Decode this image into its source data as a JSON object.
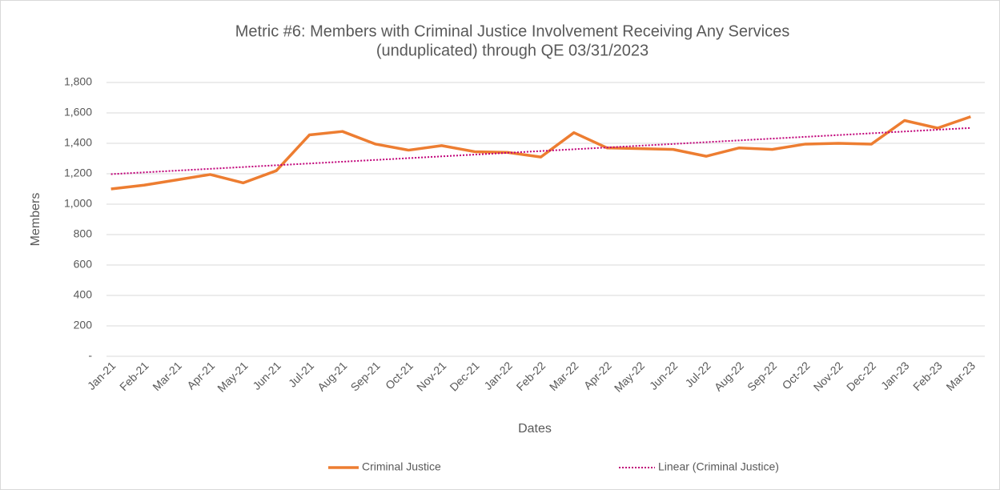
{
  "chart_data": {
    "type": "line",
    "title": [
      "Metric #6: Members with Criminal Justice Involvement Receiving Any Services",
      "(unduplicated) through QE 03/31/2023"
    ],
    "x_label": "Dates",
    "y_label": "Members",
    "categories": [
      "Jan-21",
      "Feb-21",
      "Mar-21",
      "Apr-21",
      "May-21",
      "Jun-21",
      "Jul-21",
      "Aug-21",
      "Sep-21",
      "Oct-21",
      "Nov-21",
      "Dec-21",
      "Jan-22",
      "Feb-22",
      "Mar-22",
      "Apr-22",
      "May-22",
      "Jun-22",
      "Jul-22",
      "Aug-22",
      "Sep-22",
      "Oct-22",
      "Nov-22",
      "Dec-22",
      "Jan-23",
      "Feb-23",
      "Mar-23"
    ],
    "series": [
      {
        "name": "Criminal Justice",
        "color": "#ed7d31",
        "values": [
          1100,
          1125,
          1160,
          1195,
          1140,
          1220,
          1455,
          1478,
          1395,
          1355,
          1385,
          1345,
          1340,
          1310,
          1470,
          1370,
          1365,
          1360,
          1315,
          1370,
          1360,
          1395,
          1400,
          1395,
          1550,
          1500,
          1575
        ]
      }
    ],
    "trendlines": [
      {
        "name": "Linear (Criminal Justice)",
        "series": 0,
        "kind": "linear",
        "color": "#c00078"
      }
    ],
    "ylim": [
      0,
      1800
    ],
    "yticks": [
      {
        "value": 0,
        "label": "-"
      },
      {
        "value": 200,
        "label": "200"
      },
      {
        "value": 400,
        "label": "400"
      },
      {
        "value": 600,
        "label": "600"
      },
      {
        "value": 800,
        "label": "800"
      },
      {
        "value": 1000,
        "label": "1,000"
      },
      {
        "value": 1200,
        "label": "1,200"
      },
      {
        "value": 1400,
        "label": "1,400"
      },
      {
        "value": 1600,
        "label": "1,600"
      },
      {
        "value": 1800,
        "label": "1,800"
      }
    ],
    "grid": true,
    "legend": "bottom"
  }
}
